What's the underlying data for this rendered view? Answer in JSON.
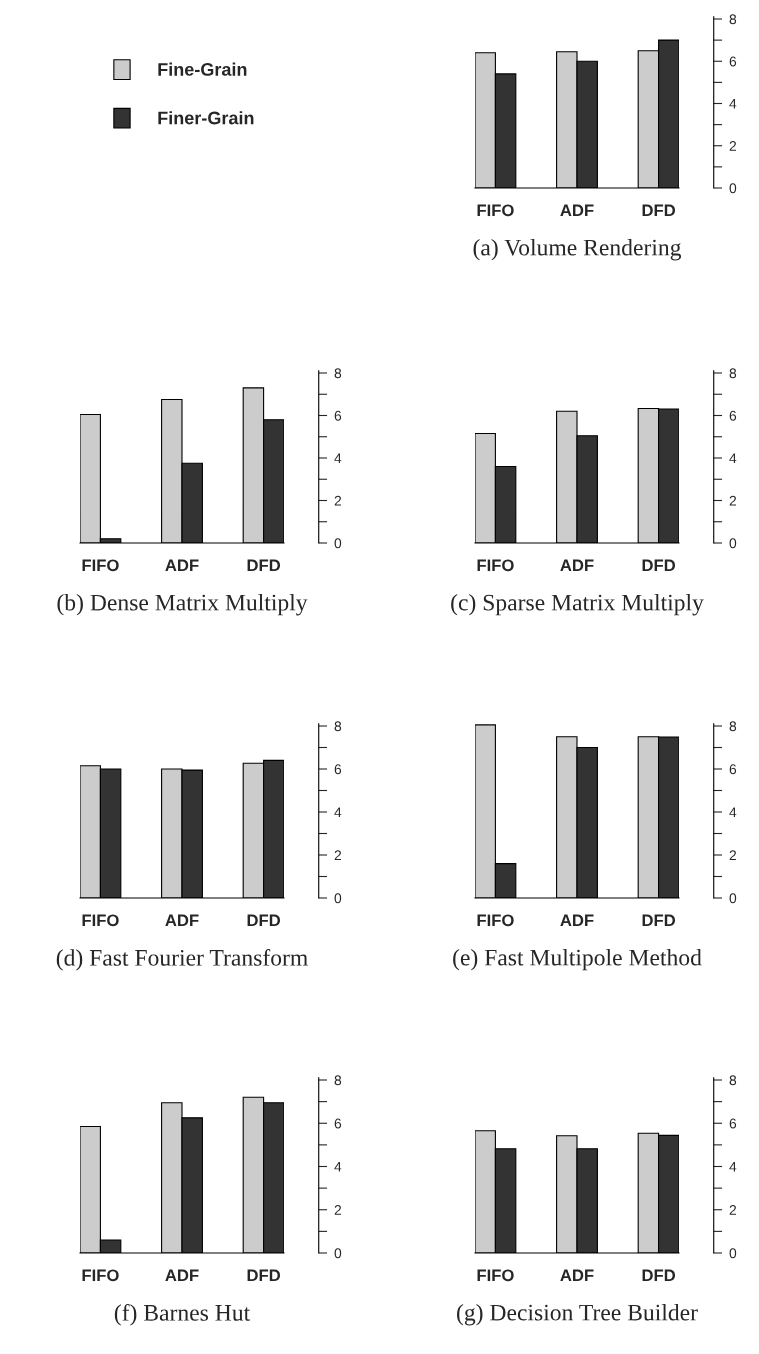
{
  "chart_data": [
    {
      "type": "bar",
      "xlabel": "(a) Volume Rendering",
      "categories": [
        "FIFO",
        "ADF",
        "DFD"
      ],
      "legend": "left",
      "ylim": [
        0,
        8.1
      ],
      "yticks": [
        0,
        2,
        4,
        6,
        8
      ],
      "series": [
        {
          "name": "Fine-Grain",
          "color": "#cccccc",
          "values": [
            6.4,
            6.45,
            6.5
          ]
        },
        {
          "name": "Finer-Grain",
          "color": "#333333",
          "values": [
            5.4,
            6.0,
            7.0
          ]
        }
      ]
    },
    {
      "type": "bar",
      "xlabel": "(b) Dense Matrix Multiply",
      "categories": [
        "FIFO",
        "ADF",
        "DFD"
      ],
      "ylim": [
        0,
        8.1
      ],
      "yticks": [
        0,
        2,
        4,
        6,
        8
      ],
      "series": [
        {
          "color": "#cccccc",
          "values": [
            6.05,
            6.75,
            7.3
          ]
        },
        {
          "color": "#333333",
          "values": [
            0.2,
            3.75,
            5.8
          ]
        }
      ]
    },
    {
      "type": "bar",
      "xlabel": "(c) Sparse Matrix Multiply",
      "categories": [
        "FIFO",
        "ADF",
        "DFD"
      ],
      "ylim": [
        0,
        8.1
      ],
      "yticks": [
        0,
        2,
        4,
        6,
        8
      ],
      "series": [
        {
          "color": "#cccccc",
          "values": [
            5.15,
            6.2,
            6.33
          ]
        },
        {
          "color": "#333333",
          "values": [
            3.6,
            5.05,
            6.3
          ]
        }
      ]
    },
    {
      "type": "bar",
      "xlabel": "(d) Fast Fourier Transform",
      "categories": [
        "FIFO",
        "ADF",
        "DFD"
      ],
      "ylim": [
        0,
        8.1
      ],
      "yticks": [
        0,
        2,
        4,
        6,
        8
      ],
      "series": [
        {
          "color": "#cccccc",
          "values": [
            6.15,
            6.0,
            6.27
          ]
        },
        {
          "color": "#333333",
          "values": [
            6.0,
            5.95,
            6.4
          ]
        }
      ]
    },
    {
      "type": "bar",
      "xlabel": "(e) Fast Multipole Method",
      "categories": [
        "FIFO",
        "ADF",
        "DFD"
      ],
      "ylim": [
        0,
        8.1
      ],
      "yticks": [
        0,
        2,
        4,
        6,
        8
      ],
      "series": [
        {
          "color": "#cccccc",
          "values": [
            8.05,
            7.5,
            7.5
          ]
        },
        {
          "color": "#333333",
          "values": [
            1.6,
            7.0,
            7.48
          ]
        }
      ]
    },
    {
      "type": "bar",
      "xlabel": "(f) Barnes Hut",
      "categories": [
        "FIFO",
        "ADF",
        "DFD"
      ],
      "ylim": [
        0,
        8.1
      ],
      "yticks": [
        0,
        2,
        4,
        6,
        8
      ],
      "series": [
        {
          "color": "#cccccc",
          "values": [
            5.85,
            6.95,
            7.2
          ]
        },
        {
          "color": "#333333",
          "values": [
            0.6,
            6.25,
            6.95
          ]
        }
      ]
    },
    {
      "type": "bar",
      "xlabel": "(g) Decision Tree Builder",
      "categories": [
        "FIFO",
        "ADF",
        "DFD"
      ],
      "ylim": [
        0,
        8.1
      ],
      "yticks": [
        0,
        2,
        4,
        6,
        8
      ],
      "series": [
        {
          "color": "#cccccc",
          "values": [
            5.65,
            5.42,
            5.54
          ]
        },
        {
          "color": "#333333",
          "values": [
            4.82,
            4.82,
            5.44
          ]
        }
      ]
    }
  ]
}
